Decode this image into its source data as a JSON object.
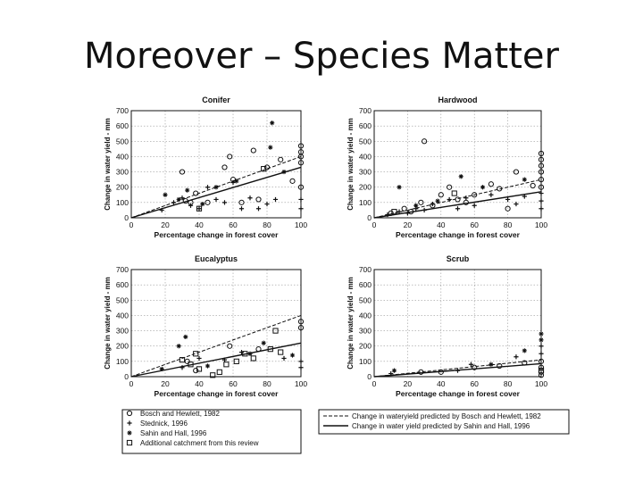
{
  "slide": {
    "title": "Moreover – Species Matter"
  },
  "chart_data": [
    {
      "type": "scatter",
      "title": "Conifer",
      "xlabel": "Percentage change in forest cover",
      "ylabel": "Change in water yield - mm",
      "xlim": [
        0,
        100
      ],
      "ylim": [
        0,
        700
      ],
      "xticks": [
        0,
        20,
        40,
        60,
        80,
        100
      ],
      "yticks": [
        0,
        100,
        200,
        300,
        400,
        500,
        600,
        700
      ],
      "grid": true,
      "lines": [
        {
          "name": "Change in wateryield predicted by Bosch and Hewlett, 1982",
          "style": "dashed",
          "x": [
            0,
            100
          ],
          "y": [
            0,
            400
          ]
        },
        {
          "name": "Change in water yield predicted by Sahin and Hall, 1996",
          "style": "solid",
          "x": [
            0,
            100
          ],
          "y": [
            0,
            330
          ]
        }
      ],
      "series": [
        {
          "name": "Bosch and Hewlett, 1982",
          "marker": "circle",
          "points": [
            [
              30,
              300
            ],
            [
              32,
              110
            ],
            [
              35,
              100
            ],
            [
              38,
              160
            ],
            [
              45,
              100
            ],
            [
              55,
              330
            ],
            [
              58,
              400
            ],
            [
              60,
              250
            ],
            [
              65,
              100
            ],
            [
              72,
              440
            ],
            [
              75,
              120
            ],
            [
              80,
              330
            ],
            [
              88,
              380
            ],
            [
              95,
              240
            ],
            [
              100,
              470
            ],
            [
              100,
              430
            ],
            [
              100,
              400
            ],
            [
              100,
              360
            ],
            [
              100,
              200
            ]
          ]
        },
        {
          "name": "Stednick, 1996",
          "marker": "plus",
          "points": [
            [
              18,
              50
            ],
            [
              25,
              100
            ],
            [
              30,
              130
            ],
            [
              35,
              80
            ],
            [
              40,
              60
            ],
            [
              45,
              200
            ],
            [
              50,
              120
            ],
            [
              55,
              100
            ],
            [
              60,
              230
            ],
            [
              65,
              60
            ],
            [
              70,
              130
            ],
            [
              75,
              60
            ],
            [
              80,
              90
            ],
            [
              85,
              120
            ],
            [
              100,
              120
            ],
            [
              100,
              60
            ]
          ]
        },
        {
          "name": "Sahin and Hall, 1996",
          "marker": "star",
          "points": [
            [
              20,
              150
            ],
            [
              28,
              120
            ],
            [
              33,
              180
            ],
            [
              42,
              90
            ],
            [
              50,
              200
            ],
            [
              62,
              240
            ],
            [
              82,
              460
            ],
            [
              83,
              620
            ],
            [
              90,
              300
            ]
          ]
        },
        {
          "name": "Additional catchment from this review",
          "marker": "square",
          "points": [
            [
              40,
              60
            ],
            [
              78,
              320
            ]
          ]
        }
      ]
    },
    {
      "type": "scatter",
      "title": "Hardwood",
      "xlabel": "Percentage change in forest cover",
      "ylabel": "Change in water yield - mm",
      "xlim": [
        0,
        100
      ],
      "ylim": [
        0,
        700
      ],
      "xticks": [
        0,
        20,
        40,
        60,
        80,
        100
      ],
      "yticks": [
        0,
        100,
        200,
        300,
        400,
        500,
        600,
        700
      ],
      "grid": true,
      "lines": [
        {
          "name": "Change in wateryield predicted by Bosch and Hewlett, 1982",
          "style": "dashed",
          "x": [
            0,
            100
          ],
          "y": [
            0,
            250
          ]
        },
        {
          "name": "Change in water yield predicted by Sahin and Hall, 1996",
          "style": "solid",
          "x": [
            0,
            100
          ],
          "y": [
            0,
            170
          ]
        }
      ],
      "series": [
        {
          "name": "Bosch and Hewlett, 1982",
          "marker": "circle",
          "points": [
            [
              10,
              30
            ],
            [
              18,
              60
            ],
            [
              22,
              40
            ],
            [
              28,
              100
            ],
            [
              30,
              500
            ],
            [
              35,
              80
            ],
            [
              40,
              150
            ],
            [
              45,
              200
            ],
            [
              50,
              120
            ],
            [
              55,
              100
            ],
            [
              60,
              150
            ],
            [
              70,
              220
            ],
            [
              75,
              190
            ],
            [
              80,
              60
            ],
            [
              85,
              300
            ],
            [
              95,
              210
            ],
            [
              100,
              420
            ],
            [
              100,
              380
            ],
            [
              100,
              340
            ],
            [
              100,
              300
            ],
            [
              100,
              250
            ],
            [
              100,
              200
            ]
          ]
        },
        {
          "name": "Stednick, 1996",
          "marker": "plus",
          "points": [
            [
              8,
              20
            ],
            [
              15,
              40
            ],
            [
              20,
              30
            ],
            [
              25,
              60
            ],
            [
              30,
              50
            ],
            [
              35,
              90
            ],
            [
              45,
              120
            ],
            [
              50,
              60
            ],
            [
              55,
              130
            ],
            [
              60,
              80
            ],
            [
              70,
              150
            ],
            [
              80,
              120
            ],
            [
              85,
              90
            ],
            [
              90,
              140
            ],
            [
              100,
              160
            ],
            [
              100,
              110
            ],
            [
              100,
              60
            ]
          ]
        },
        {
          "name": "Sahin and Hall, 1996",
          "marker": "star",
          "points": [
            [
              15,
              200
            ],
            [
              25,
              80
            ],
            [
              38,
              110
            ],
            [
              52,
              270
            ],
            [
              65,
              200
            ],
            [
              90,
              250
            ]
          ]
        },
        {
          "name": "Additional catchment from this review",
          "marker": "square",
          "points": [
            [
              12,
              40
            ],
            [
              48,
              160
            ]
          ]
        }
      ]
    },
    {
      "type": "scatter",
      "title": "Eucalyptus",
      "xlabel": "Percentage change in forest cover",
      "ylabel": "Change in water yield - mm",
      "xlim": [
        0,
        100
      ],
      "ylim": [
        0,
        700
      ],
      "xticks": [
        0,
        20,
        40,
        60,
        80,
        100
      ],
      "yticks": [
        0,
        100,
        200,
        300,
        400,
        500,
        600,
        700
      ],
      "grid": true,
      "lines": [
        {
          "name": "Change in wateryield predicted by Bosch and Hewlett, 1982",
          "style": "dashed",
          "x": [
            0,
            100
          ],
          "y": [
            0,
            400
          ]
        },
        {
          "name": "Change in water yield predicted by Sahin and Hall, 1996",
          "style": "solid",
          "x": [
            0,
            100
          ],
          "y": [
            0,
            220
          ]
        }
      ],
      "series": [
        {
          "name": "Bosch and Hewlett, 1982",
          "marker": "circle",
          "points": [
            [
              33,
              100
            ],
            [
              38,
              40
            ],
            [
              58,
              200
            ],
            [
              75,
              180
            ],
            [
              100,
              360
            ],
            [
              100,
              320
            ]
          ]
        },
        {
          "name": "Stednick, 1996",
          "marker": "plus",
          "points": [
            [
              30,
              60
            ],
            [
              40,
              120
            ],
            [
              55,
              110
            ],
            [
              65,
              160
            ],
            [
              90,
              120
            ],
            [
              100,
              100
            ],
            [
              100,
              60
            ]
          ]
        },
        {
          "name": "Sahin and Hall, 1996",
          "marker": "star",
          "points": [
            [
              18,
              50
            ],
            [
              28,
              200
            ],
            [
              32,
              260
            ],
            [
              45,
              70
            ],
            [
              70,
              150
            ],
            [
              78,
              220
            ],
            [
              95,
              140
            ]
          ]
        },
        {
          "name": "Additional catchment from this review",
          "marker": "square",
          "points": [
            [
              30,
              110
            ],
            [
              35,
              80
            ],
            [
              38,
              150
            ],
            [
              40,
              50
            ],
            [
              48,
              10
            ],
            [
              52,
              30
            ],
            [
              56,
              80
            ],
            [
              62,
              100
            ],
            [
              67,
              150
            ],
            [
              72,
              120
            ],
            [
              82,
              180
            ],
            [
              85,
              300
            ],
            [
              88,
              160
            ]
          ]
        }
      ]
    },
    {
      "type": "scatter",
      "title": "Scrub",
      "xlabel": "Percentage change in forest cover",
      "ylabel": "Change in water yield - mm",
      "xlim": [
        0,
        100
      ],
      "ylim": [
        0,
        700
      ],
      "xticks": [
        0,
        20,
        40,
        60,
        80,
        100
      ],
      "yticks": [
        0,
        100,
        200,
        300,
        400,
        500,
        600,
        700
      ],
      "grid": true,
      "lines": [
        {
          "name": "Change in wateryield predicted by Bosch and Hewlett, 1982",
          "style": "dashed",
          "x": [
            0,
            100
          ],
          "y": [
            0,
            110
          ]
        },
        {
          "name": "Change in water yield predicted by Sahin and Hall, 1996",
          "style": "solid",
          "x": [
            0,
            100
          ],
          "y": [
            0,
            85
          ]
        }
      ],
      "series": [
        {
          "name": "Bosch and Hewlett, 1982",
          "marker": "circle",
          "points": [
            [
              28,
              30
            ],
            [
              40,
              30
            ],
            [
              60,
              60
            ],
            [
              75,
              70
            ],
            [
              90,
              90
            ],
            [
              100,
              100
            ],
            [
              100,
              60
            ],
            [
              100,
              30
            ],
            [
              100,
              10
            ]
          ]
        },
        {
          "name": "Stednick, 1996",
          "marker": "plus",
          "points": [
            [
              10,
              20
            ],
            [
              50,
              40
            ],
            [
              58,
              80
            ],
            [
              85,
              130
            ],
            [
              100,
              200
            ],
            [
              100,
              150
            ]
          ]
        },
        {
          "name": "Sahin and Hall, 1996",
          "marker": "star",
          "points": [
            [
              12,
              40
            ],
            [
              70,
              80
            ],
            [
              90,
              170
            ],
            [
              100,
              280
            ],
            [
              100,
              240
            ]
          ]
        },
        {
          "name": "Additional catchment from this review",
          "marker": "square",
          "points": [
            [
              100,
              40
            ]
          ]
        }
      ]
    }
  ],
  "legend_markers": {
    "items": [
      {
        "marker": "circle",
        "label": "Bosch and Hewlett, 1982"
      },
      {
        "marker": "plus",
        "label": "Stednick, 1996"
      },
      {
        "marker": "star",
        "label": "Sahin and Hall, 1996"
      },
      {
        "marker": "square",
        "label": "Additional catchment from this review"
      }
    ]
  },
  "legend_lines": {
    "items": [
      {
        "style": "dashed",
        "label": "Change in wateryield predicted by Bosch and Hewlett, 1982"
      },
      {
        "style": "solid",
        "label": "Change in water yield predicted by Sahin and Hall, 1996"
      }
    ]
  },
  "colors": {
    "ink": "#111111",
    "grid": "#9a9a9a",
    "background": "#ffffff"
  }
}
